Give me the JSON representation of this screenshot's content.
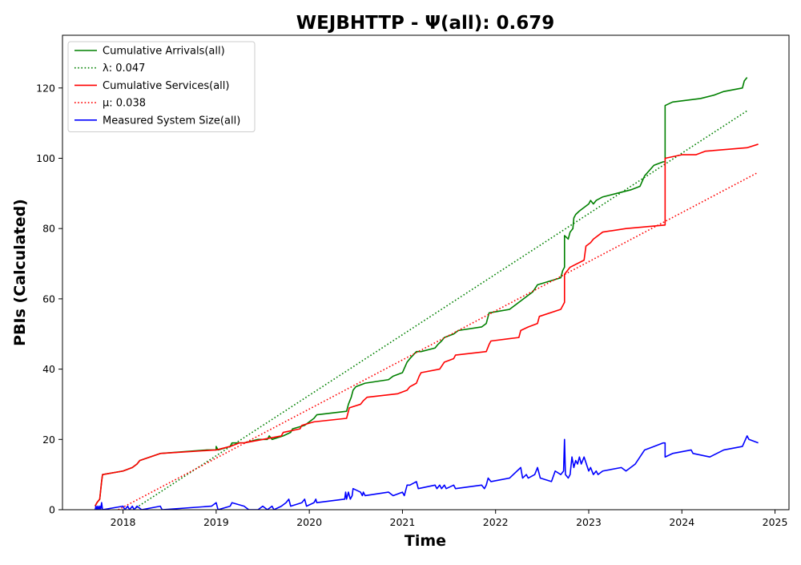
{
  "chart_data": {
    "type": "line",
    "title": "WEJBHTTP -  Ψ(all): 0.679",
    "xlabel": "Time",
    "ylabel": "PBIs (Calculated)",
    "xlim": [
      2017.35,
      2025.15
    ],
    "ylim": [
      0,
      135
    ],
    "xticks": [
      2018,
      2019,
      2020,
      2021,
      2022,
      2023,
      2024,
      2025
    ],
    "yticks": [
      0,
      20,
      40,
      60,
      80,
      100,
      120
    ],
    "grid": false,
    "legend_position": "top-left",
    "series": [
      {
        "name": "Cumulative Arrivals(all)",
        "color": "#008000",
        "style": "solid",
        "points": [
          [
            2017.7,
            1
          ],
          [
            2017.72,
            2
          ],
          [
            2017.75,
            3
          ],
          [
            2017.77,
            8
          ],
          [
            2017.78,
            10
          ],
          [
            2018.0,
            11
          ],
          [
            2018.1,
            12
          ],
          [
            2018.15,
            13
          ],
          [
            2018.18,
            14
          ],
          [
            2018.4,
            16
          ],
          [
            2018.9,
            17
          ],
          [
            2019.0,
            17
          ],
          [
            2019.0,
            18
          ],
          [
            2019.02,
            17
          ],
          [
            2019.15,
            18
          ],
          [
            2019.17,
            19
          ],
          [
            2019.3,
            19
          ],
          [
            2019.45,
            20
          ],
          [
            2019.55,
            20
          ],
          [
            2019.57,
            21
          ],
          [
            2019.6,
            20
          ],
          [
            2019.72,
            21
          ],
          [
            2019.8,
            22
          ],
          [
            2019.82,
            23
          ],
          [
            2019.95,
            24
          ],
          [
            2020.0,
            25
          ],
          [
            2020.05,
            26
          ],
          [
            2020.08,
            27
          ],
          [
            2020.4,
            28
          ],
          [
            2020.42,
            30
          ],
          [
            2020.45,
            32
          ],
          [
            2020.47,
            34
          ],
          [
            2020.5,
            35
          ],
          [
            2020.6,
            36
          ],
          [
            2020.85,
            37
          ],
          [
            2020.9,
            38
          ],
          [
            2021.0,
            39
          ],
          [
            2021.05,
            42
          ],
          [
            2021.08,
            43
          ],
          [
            2021.15,
            45
          ],
          [
            2021.2,
            45
          ],
          [
            2021.35,
            46
          ],
          [
            2021.38,
            47
          ],
          [
            2021.42,
            48
          ],
          [
            2021.45,
            49
          ],
          [
            2021.55,
            50
          ],
          [
            2021.6,
            51
          ],
          [
            2021.85,
            52
          ],
          [
            2021.9,
            53
          ],
          [
            2021.92,
            55
          ],
          [
            2021.93,
            56
          ],
          [
            2022.15,
            57
          ],
          [
            2022.25,
            59
          ],
          [
            2022.3,
            60
          ],
          [
            2022.4,
            62
          ],
          [
            2022.45,
            64
          ],
          [
            2022.7,
            66
          ],
          [
            2022.72,
            68
          ],
          [
            2022.74,
            69
          ],
          [
            2022.74,
            78
          ],
          [
            2022.78,
            77
          ],
          [
            2022.8,
            79
          ],
          [
            2022.83,
            80
          ],
          [
            2022.84,
            83
          ],
          [
            2022.86,
            84
          ],
          [
            2022.9,
            85
          ],
          [
            2022.95,
            86
          ],
          [
            2023.0,
            87
          ],
          [
            2023.02,
            88
          ],
          [
            2023.05,
            87
          ],
          [
            2023.08,
            88
          ],
          [
            2023.15,
            89
          ],
          [
            2023.3,
            90
          ],
          [
            2023.45,
            91
          ],
          [
            2023.55,
            92
          ],
          [
            2023.6,
            95
          ],
          [
            2023.7,
            98
          ],
          [
            2023.8,
            99
          ],
          [
            2023.82,
            99
          ],
          [
            2023.82,
            115
          ],
          [
            2023.9,
            116
          ],
          [
            2024.2,
            117
          ],
          [
            2024.35,
            118
          ],
          [
            2024.45,
            119
          ],
          [
            2024.65,
            120
          ],
          [
            2024.67,
            122
          ],
          [
            2024.7,
            123
          ]
        ]
      },
      {
        "name": "λ: 0.047",
        "color": "#008000",
        "style": "dotted",
        "points": [
          [
            2018.05,
            -1
          ],
          [
            2024.7,
            113.5
          ]
        ]
      },
      {
        "name": "Cumulative Services(all)",
        "color": "#ff0000",
        "style": "solid",
        "points": [
          [
            2017.7,
            1
          ],
          [
            2017.72,
            2
          ],
          [
            2017.75,
            3
          ],
          [
            2017.77,
            8
          ],
          [
            2017.78,
            10
          ],
          [
            2018.0,
            11
          ],
          [
            2018.1,
            12
          ],
          [
            2018.15,
            13
          ],
          [
            2018.18,
            14
          ],
          [
            2018.4,
            16
          ],
          [
            2019.0,
            17
          ],
          [
            2019.15,
            18
          ],
          [
            2019.25,
            19
          ],
          [
            2019.3,
            19
          ],
          [
            2019.7,
            21
          ],
          [
            2019.72,
            22
          ],
          [
            2019.9,
            23
          ],
          [
            2019.92,
            24
          ],
          [
            2020.05,
            25
          ],
          [
            2020.4,
            26
          ],
          [
            2020.43,
            29
          ],
          [
            2020.55,
            30
          ],
          [
            2020.58,
            31
          ],
          [
            2020.62,
            32
          ],
          [
            2020.95,
            33
          ],
          [
            2021.05,
            34
          ],
          [
            2021.08,
            35
          ],
          [
            2021.15,
            36
          ],
          [
            2021.18,
            38
          ],
          [
            2021.2,
            39
          ],
          [
            2021.4,
            40
          ],
          [
            2021.45,
            42
          ],
          [
            2021.55,
            43
          ],
          [
            2021.57,
            44
          ],
          [
            2021.9,
            45
          ],
          [
            2021.93,
            47
          ],
          [
            2021.95,
            48
          ],
          [
            2022.25,
            49
          ],
          [
            2022.27,
            51
          ],
          [
            2022.35,
            52
          ],
          [
            2022.45,
            53
          ],
          [
            2022.47,
            55
          ],
          [
            2022.7,
            57
          ],
          [
            2022.74,
            59
          ],
          [
            2022.74,
            67
          ],
          [
            2022.8,
            69
          ],
          [
            2022.95,
            71
          ],
          [
            2022.97,
            75
          ],
          [
            2023.02,
            76
          ],
          [
            2023.05,
            77
          ],
          [
            2023.15,
            79
          ],
          [
            2023.4,
            80
          ],
          [
            2023.82,
            81
          ],
          [
            2023.82,
            100
          ],
          [
            2024.0,
            101
          ],
          [
            2024.15,
            101
          ],
          [
            2024.25,
            102
          ],
          [
            2024.7,
            103
          ],
          [
            2024.82,
            104
          ]
        ]
      },
      {
        "name": "μ: 0.038",
        "color": "#ff0000",
        "style": "dotted",
        "points": [
          [
            2017.95,
            0
          ],
          [
            2024.82,
            96
          ]
        ]
      },
      {
        "name": "Measured System Size(all)",
        "color": "#0000ff",
        "style": "solid",
        "points": [
          [
            2017.7,
            0
          ],
          [
            2017.71,
            1
          ],
          [
            2017.72,
            0
          ],
          [
            2017.73,
            1
          ],
          [
            2017.74,
            0
          ],
          [
            2017.75,
            1
          ],
          [
            2017.76,
            0
          ],
          [
            2017.77,
            2
          ],
          [
            2017.78,
            0
          ],
          [
            2018.0,
            1
          ],
          [
            2018.02,
            0
          ],
          [
            2018.05,
            1
          ],
          [
            2018.07,
            0
          ],
          [
            2018.1,
            1
          ],
          [
            2018.12,
            0
          ],
          [
            2018.15,
            1
          ],
          [
            2018.2,
            0
          ],
          [
            2018.4,
            1
          ],
          [
            2018.42,
            0
          ],
          [
            2018.95,
            1
          ],
          [
            2019.0,
            2
          ],
          [
            2019.02,
            0
          ],
          [
            2019.15,
            1
          ],
          [
            2019.17,
            2
          ],
          [
            2019.3,
            1
          ],
          [
            2019.35,
            0
          ],
          [
            2019.45,
            0
          ],
          [
            2019.5,
            1
          ],
          [
            2019.55,
            0
          ],
          [
            2019.6,
            1
          ],
          [
            2019.62,
            0
          ],
          [
            2019.7,
            1
          ],
          [
            2019.75,
            2
          ],
          [
            2019.78,
            3
          ],
          [
            2019.8,
            1
          ],
          [
            2019.92,
            2
          ],
          [
            2019.95,
            3
          ],
          [
            2019.97,
            1
          ],
          [
            2020.05,
            2
          ],
          [
            2020.07,
            3
          ],
          [
            2020.08,
            2
          ],
          [
            2020.38,
            3
          ],
          [
            2020.39,
            5
          ],
          [
            2020.4,
            3
          ],
          [
            2020.42,
            5
          ],
          [
            2020.44,
            3
          ],
          [
            2020.46,
            4
          ],
          [
            2020.47,
            6
          ],
          [
            2020.55,
            5
          ],
          [
            2020.57,
            4
          ],
          [
            2020.58,
            5
          ],
          [
            2020.6,
            4
          ],
          [
            2020.85,
            5
          ],
          [
            2020.9,
            4
          ],
          [
            2021.0,
            5
          ],
          [
            2021.02,
            4
          ],
          [
            2021.05,
            7
          ],
          [
            2021.08,
            7
          ],
          [
            2021.15,
            8
          ],
          [
            2021.17,
            6
          ],
          [
            2021.35,
            7
          ],
          [
            2021.37,
            6
          ],
          [
            2021.4,
            7
          ],
          [
            2021.42,
            6
          ],
          [
            2021.45,
            7
          ],
          [
            2021.47,
            6
          ],
          [
            2021.55,
            7
          ],
          [
            2021.57,
            6
          ],
          [
            2021.85,
            7
          ],
          [
            2021.88,
            6
          ],
          [
            2021.9,
            7
          ],
          [
            2021.92,
            9
          ],
          [
            2021.95,
            8
          ],
          [
            2022.15,
            9
          ],
          [
            2022.27,
            12
          ],
          [
            2022.29,
            9
          ],
          [
            2022.33,
            10
          ],
          [
            2022.35,
            9
          ],
          [
            2022.42,
            10
          ],
          [
            2022.45,
            12
          ],
          [
            2022.48,
            9
          ],
          [
            2022.6,
            8
          ],
          [
            2022.64,
            11
          ],
          [
            2022.7,
            10
          ],
          [
            2022.73,
            11
          ],
          [
            2022.74,
            20
          ],
          [
            2022.75,
            10
          ],
          [
            2022.78,
            9
          ],
          [
            2022.8,
            10
          ],
          [
            2022.82,
            15
          ],
          [
            2022.84,
            12
          ],
          [
            2022.86,
            14
          ],
          [
            2022.88,
            13
          ],
          [
            2022.9,
            15
          ],
          [
            2022.92,
            13
          ],
          [
            2022.95,
            15
          ],
          [
            2023.0,
            11
          ],
          [
            2023.02,
            12
          ],
          [
            2023.05,
            10
          ],
          [
            2023.08,
            11
          ],
          [
            2023.1,
            10
          ],
          [
            2023.15,
            11
          ],
          [
            2023.35,
            12
          ],
          [
            2023.4,
            11
          ],
          [
            2023.5,
            13
          ],
          [
            2023.55,
            15
          ],
          [
            2023.6,
            17
          ],
          [
            2023.7,
            18
          ],
          [
            2023.8,
            19
          ],
          [
            2023.82,
            19
          ],
          [
            2023.82,
            15
          ],
          [
            2023.9,
            16
          ],
          [
            2024.1,
            17
          ],
          [
            2024.12,
            16
          ],
          [
            2024.3,
            15
          ],
          [
            2024.45,
            17
          ],
          [
            2024.65,
            18
          ],
          [
            2024.7,
            21
          ],
          [
            2024.72,
            20
          ],
          [
            2024.82,
            19
          ]
        ]
      }
    ]
  }
}
